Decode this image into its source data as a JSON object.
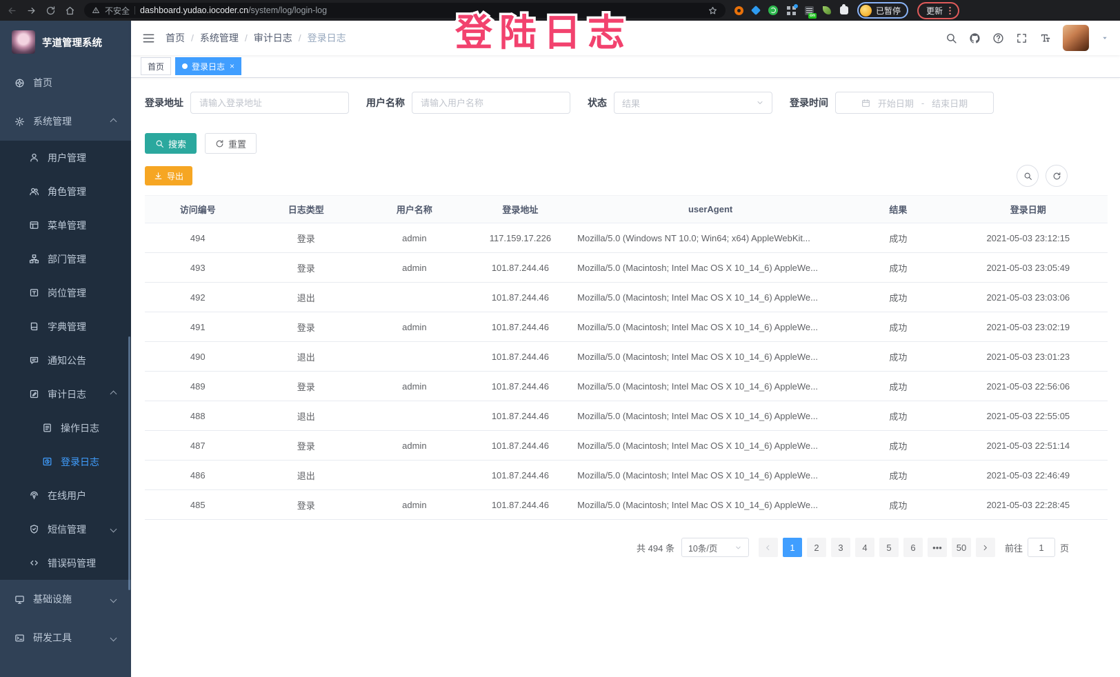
{
  "colors": {
    "accent": "#409eff",
    "teal": "#2ba89e",
    "orange": "#f6a623",
    "pink": "#f2426e"
  },
  "annotation": {
    "text": "登陆日志"
  },
  "browser": {
    "security_warning": "不安全",
    "url_host": "dashboard.yudao.iocoder.cn",
    "url_path": "/system/log/login-log",
    "on_badge": "on",
    "paused_badge": "已暂停",
    "update_button": "更新"
  },
  "sidebar": {
    "title": "芋道管理系统",
    "items": [
      {
        "id": "home",
        "label": "首页",
        "icon": "dashboard",
        "depth": 0
      },
      {
        "id": "system",
        "label": "系统管理",
        "icon": "gear",
        "depth": 0,
        "arrow": "up"
      },
      {
        "id": "user",
        "label": "用户管理",
        "icon": "user",
        "depth": 1
      },
      {
        "id": "role",
        "label": "角色管理",
        "icon": "peoples",
        "depth": 1
      },
      {
        "id": "menu",
        "label": "菜单管理",
        "icon": "menugrid",
        "depth": 1
      },
      {
        "id": "dept",
        "label": "部门管理",
        "icon": "tree",
        "depth": 1
      },
      {
        "id": "post",
        "label": "岗位管理",
        "icon": "post",
        "depth": 1
      },
      {
        "id": "dict",
        "label": "字典管理",
        "icon": "dict",
        "depth": 1
      },
      {
        "id": "notice",
        "label": "通知公告",
        "icon": "message",
        "depth": 1
      },
      {
        "id": "auditlog",
        "label": "审计日志",
        "icon": "log",
        "depth": 1,
        "arrow": "up"
      },
      {
        "id": "operlog",
        "label": "操作日志",
        "icon": "form",
        "depth": 2
      },
      {
        "id": "loginlog",
        "label": "登录日志",
        "icon": "logininfor",
        "depth": 2,
        "active": true
      },
      {
        "id": "online",
        "label": "在线用户",
        "icon": "online",
        "depth": 1
      },
      {
        "id": "sms",
        "label": "短信管理",
        "icon": "sms",
        "depth": 1,
        "arrow": "down"
      },
      {
        "id": "errorcode",
        "label": "错误码管理",
        "icon": "code",
        "depth": 1
      },
      {
        "id": "infra",
        "label": "基础设施",
        "icon": "infra",
        "depth": 0,
        "arrow": "down"
      },
      {
        "id": "devtool",
        "label": "研发工具",
        "icon": "tool",
        "depth": 0,
        "arrow": "down"
      }
    ]
  },
  "header": {
    "breadcrumb": [
      "首页",
      "系统管理",
      "审计日志",
      "登录日志"
    ]
  },
  "tags": [
    {
      "label": "首页",
      "active": false
    },
    {
      "label": "登录日志",
      "active": true
    }
  ],
  "filters": {
    "login_address_label": "登录地址",
    "login_address_placeholder": "请输入登录地址",
    "username_label": "用户名称",
    "username_placeholder": "请输入用户名称",
    "status_label": "状态",
    "status_placeholder": "结果",
    "login_time_label": "登录时间",
    "date_start_placeholder": "开始日期",
    "date_separator": "-",
    "date_end_placeholder": "结束日期"
  },
  "actions": {
    "search": "搜索",
    "reset": "重置",
    "export": "导出"
  },
  "table": {
    "columns": [
      "访问编号",
      "日志类型",
      "用户名称",
      "登录地址",
      "userAgent",
      "结果",
      "登录日期"
    ],
    "rows": [
      [
        "494",
        "登录",
        "admin",
        "117.159.17.226",
        "Mozilla/5.0 (Windows NT 10.0; Win64; x64) AppleWebKit...",
        "成功",
        "2021-05-03 23:12:15"
      ],
      [
        "493",
        "登录",
        "admin",
        "101.87.244.46",
        "Mozilla/5.0 (Macintosh; Intel Mac OS X 10_14_6) AppleWe...",
        "成功",
        "2021-05-03 23:05:49"
      ],
      [
        "492",
        "退出",
        "",
        "101.87.244.46",
        "Mozilla/5.0 (Macintosh; Intel Mac OS X 10_14_6) AppleWe...",
        "成功",
        "2021-05-03 23:03:06"
      ],
      [
        "491",
        "登录",
        "admin",
        "101.87.244.46",
        "Mozilla/5.0 (Macintosh; Intel Mac OS X 10_14_6) AppleWe...",
        "成功",
        "2021-05-03 23:02:19"
      ],
      [
        "490",
        "退出",
        "",
        "101.87.244.46",
        "Mozilla/5.0 (Macintosh; Intel Mac OS X 10_14_6) AppleWe...",
        "成功",
        "2021-05-03 23:01:23"
      ],
      [
        "489",
        "登录",
        "admin",
        "101.87.244.46",
        "Mozilla/5.0 (Macintosh; Intel Mac OS X 10_14_6) AppleWe...",
        "成功",
        "2021-05-03 22:56:06"
      ],
      [
        "488",
        "退出",
        "",
        "101.87.244.46",
        "Mozilla/5.0 (Macintosh; Intel Mac OS X 10_14_6) AppleWe...",
        "成功",
        "2021-05-03 22:55:05"
      ],
      [
        "487",
        "登录",
        "admin",
        "101.87.244.46",
        "Mozilla/5.0 (Macintosh; Intel Mac OS X 10_14_6) AppleWe...",
        "成功",
        "2021-05-03 22:51:14"
      ],
      [
        "486",
        "退出",
        "",
        "101.87.244.46",
        "Mozilla/5.0 (Macintosh; Intel Mac OS X 10_14_6) AppleWe...",
        "成功",
        "2021-05-03 22:46:49"
      ],
      [
        "485",
        "登录",
        "admin",
        "101.87.244.46",
        "Mozilla/5.0 (Macintosh; Intel Mac OS X 10_14_6) AppleWe...",
        "成功",
        "2021-05-03 22:28:45"
      ]
    ]
  },
  "pagination": {
    "total_text": "共 494 条",
    "page_size": "10条/页",
    "pages": [
      "1",
      "2",
      "3",
      "4",
      "5",
      "6",
      "•••",
      "50"
    ],
    "active_page": "1",
    "goto_label": "前往",
    "goto_value": "1",
    "page_suffix": "页"
  }
}
